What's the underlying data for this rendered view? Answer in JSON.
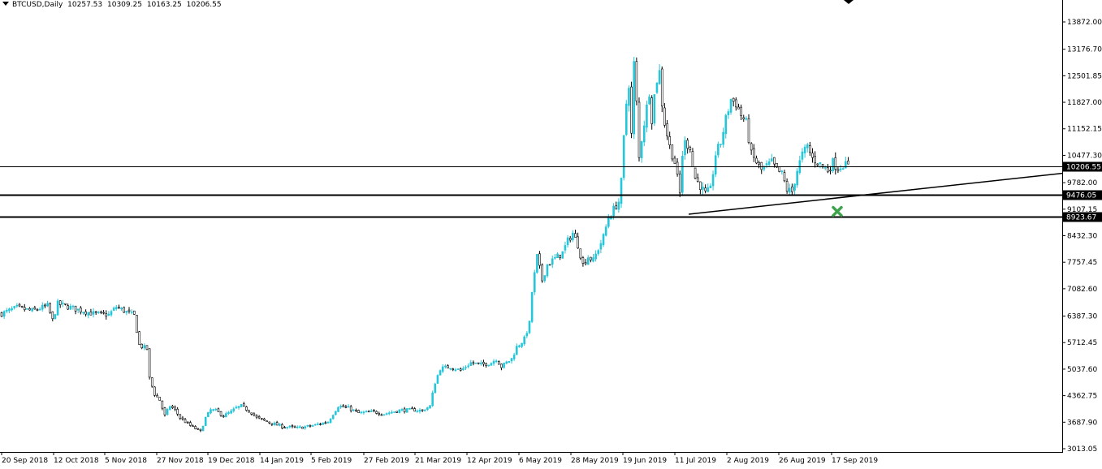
{
  "header": {
    "symbol": "BTCUSD,Daily",
    "open": "10257.53",
    "high": "10309.25",
    "low": "10163.25",
    "close": "10206.55"
  },
  "chart_data": {
    "type": "candlestick",
    "symbol": "BTCUSD",
    "timeframe": "Daily",
    "ylim": [
      3013.05,
      14100
    ],
    "y_ticks": [
      "13872.00",
      "13176.70",
      "12501.85",
      "11827.00",
      "11152.15",
      "10477.30",
      "9782.00",
      "9107.15",
      "8432.30",
      "7757.45",
      "7082.60",
      "6387.30",
      "5712.45",
      "5037.60",
      "4362.75",
      "3687.90",
      "3013.05"
    ],
    "x_ticks": [
      "20 Sep 2018",
      "12 Oct 2018",
      "5 Nov 2018",
      "27 Nov 2018",
      "19 Dec 2018",
      "14 Jan 2019",
      "5 Feb 2019",
      "27 Feb 2019",
      "21 Mar 2019",
      "12 Apr 2019",
      "6 May 2019",
      "28 May 2019",
      "19 Jun 2019",
      "11 Jul 2019",
      "2 Aug 2019",
      "26 Aug 2019",
      "17 Sep 2019"
    ],
    "price_levels": [
      {
        "label": "10206.55",
        "value": 10206.55,
        "style": "thin"
      },
      {
        "label": "9476.05",
        "value": 9476.05,
        "style": "thick"
      },
      {
        "label": "8923.67",
        "value": 8923.67,
        "style": "thick"
      }
    ],
    "trendline": {
      "from": {
        "date": "10 Jul 2019",
        "value": 8980
      },
      "to": {
        "date": "10 Oct 2019",
        "value": 10020
      }
    },
    "marker": {
      "type": "cross",
      "date": "19 Sep 2019",
      "value": 9050,
      "color": "#3fa34d"
    },
    "colors": {
      "bull": "#26c6da",
      "bear": "#000000"
    },
    "anchors": [
      {
        "i": 0,
        "p": 6450
      },
      {
        "i": 6,
        "p": 6600
      },
      {
        "i": 12,
        "p": 6520
      },
      {
        "i": 18,
        "p": 6650
      },
      {
        "i": 20,
        "p": 6280
      },
      {
        "i": 22,
        "p": 6700
      },
      {
        "i": 30,
        "p": 6550
      },
      {
        "i": 36,
        "p": 6450
      },
      {
        "i": 42,
        "p": 6420
      },
      {
        "i": 45,
        "p": 6620
      },
      {
        "i": 52,
        "p": 6400
      },
      {
        "i": 54,
        "p": 5650
      },
      {
        "i": 57,
        "p": 5550
      },
      {
        "i": 58,
        "p": 4800
      },
      {
        "i": 60,
        "p": 4400
      },
      {
        "i": 62,
        "p": 4250
      },
      {
        "i": 64,
        "p": 3850
      },
      {
        "i": 66,
        "p": 4100
      },
      {
        "i": 68,
        "p": 4000
      },
      {
        "i": 70,
        "p": 3800
      },
      {
        "i": 74,
        "p": 3600
      },
      {
        "i": 78,
        "p": 3450
      },
      {
        "i": 80,
        "p": 3800
      },
      {
        "i": 82,
        "p": 4000
      },
      {
        "i": 84,
        "p": 3980
      },
      {
        "i": 87,
        "p": 3850
      },
      {
        "i": 90,
        "p": 3950
      },
      {
        "i": 92,
        "p": 4050
      },
      {
        "i": 94,
        "p": 4100
      },
      {
        "i": 98,
        "p": 3930
      },
      {
        "i": 100,
        "p": 3800
      },
      {
        "i": 104,
        "p": 3700
      },
      {
        "i": 110,
        "p": 3580
      },
      {
        "i": 116,
        "p": 3540
      },
      {
        "i": 122,
        "p": 3600
      },
      {
        "i": 128,
        "p": 3700
      },
      {
        "i": 132,
        "p": 4100
      },
      {
        "i": 136,
        "p": 4050
      },
      {
        "i": 140,
        "p": 3920
      },
      {
        "i": 146,
        "p": 3950
      },
      {
        "i": 150,
        "p": 3900
      },
      {
        "i": 156,
        "p": 3990
      },
      {
        "i": 162,
        "p": 4000
      },
      {
        "i": 165,
        "p": 3980
      },
      {
        "i": 168,
        "p": 4100
      },
      {
        "i": 170,
        "p": 4700
      },
      {
        "i": 172,
        "p": 5050
      },
      {
        "i": 176,
        "p": 5100
      },
      {
        "i": 180,
        "p": 5000
      },
      {
        "i": 184,
        "p": 5200
      },
      {
        "i": 188,
        "p": 5150
      },
      {
        "i": 192,
        "p": 5200
      },
      {
        "i": 194,
        "p": 5300
      },
      {
        "i": 196,
        "p": 5100
      },
      {
        "i": 198,
        "p": 5200
      },
      {
        "i": 200,
        "p": 5300
      },
      {
        "i": 202,
        "p": 5600
      },
      {
        "i": 205,
        "p": 5800
      },
      {
        "i": 207,
        "p": 6200
      },
      {
        "i": 208,
        "p": 7000
      },
      {
        "i": 210,
        "p": 7900
      },
      {
        "i": 212,
        "p": 7300
      },
      {
        "i": 214,
        "p": 7700
      },
      {
        "i": 216,
        "p": 7800
      },
      {
        "i": 218,
        "p": 7900
      },
      {
        "i": 220,
        "p": 8000
      },
      {
        "i": 222,
        "p": 8300
      },
      {
        "i": 224,
        "p": 8500
      },
      {
        "i": 226,
        "p": 8200
      },
      {
        "i": 228,
        "p": 7700
      },
      {
        "i": 230,
        "p": 7900
      },
      {
        "i": 232,
        "p": 7800
      },
      {
        "i": 234,
        "p": 8100
      },
      {
        "i": 236,
        "p": 8400
      },
      {
        "i": 238,
        "p": 8900
      },
      {
        "i": 240,
        "p": 9100
      },
      {
        "i": 242,
        "p": 9300
      },
      {
        "i": 243,
        "p": 9800
      },
      {
        "i": 244,
        "p": 10900
      },
      {
        "i": 245,
        "p": 11800
      },
      {
        "i": 246,
        "p": 12300
      },
      {
        "i": 247,
        "p": 11000
      },
      {
        "i": 248,
        "p": 12800
      },
      {
        "i": 249,
        "p": 11800
      },
      {
        "i": 250,
        "p": 10400
      },
      {
        "i": 251,
        "p": 10900
      },
      {
        "i": 252,
        "p": 11300
      },
      {
        "i": 254,
        "p": 12100
      },
      {
        "i": 255,
        "p": 11400
      },
      {
        "i": 256,
        "p": 12000
      },
      {
        "i": 257,
        "p": 12400
      },
      {
        "i": 258,
        "p": 12600
      },
      {
        "i": 259,
        "p": 11800
      },
      {
        "i": 260,
        "p": 11300
      },
      {
        "i": 262,
        "p": 10700
      },
      {
        "i": 264,
        "p": 10300
      },
      {
        "i": 266,
        "p": 9500
      },
      {
        "i": 267,
        "p": 10500
      },
      {
        "i": 268,
        "p": 10800
      },
      {
        "i": 270,
        "p": 10700
      },
      {
        "i": 271,
        "p": 10200
      },
      {
        "i": 272,
        "p": 9900
      },
      {
        "i": 274,
        "p": 9700
      },
      {
        "i": 276,
        "p": 9500
      },
      {
        "i": 278,
        "p": 9600
      },
      {
        "i": 280,
        "p": 10500
      },
      {
        "i": 282,
        "p": 10800
      },
      {
        "i": 284,
        "p": 11400
      },
      {
        "i": 286,
        "p": 11900
      },
      {
        "i": 288,
        "p": 11800
      },
      {
        "i": 290,
        "p": 11500
      },
      {
        "i": 292,
        "p": 11300
      },
      {
        "i": 294,
        "p": 10500
      },
      {
        "i": 296,
        "p": 10300
      },
      {
        "i": 298,
        "p": 10100
      },
      {
        "i": 300,
        "p": 10200
      },
      {
        "i": 302,
        "p": 10300
      },
      {
        "i": 304,
        "p": 10100
      },
      {
        "i": 306,
        "p": 10000
      },
      {
        "i": 308,
        "p": 9600
      },
      {
        "i": 310,
        "p": 9550
      },
      {
        "i": 312,
        "p": 10100
      },
      {
        "i": 314,
        "p": 10500
      },
      {
        "i": 316,
        "p": 10700
      },
      {
        "i": 318,
        "p": 10400
      },
      {
        "i": 320,
        "p": 10300
      },
      {
        "i": 322,
        "p": 10200
      },
      {
        "i": 324,
        "p": 10100
      },
      {
        "i": 326,
        "p": 10300
      },
      {
        "i": 328,
        "p": 10150
      },
      {
        "i": 330,
        "p": 10250
      },
      {
        "i": 332,
        "p": 10200
      }
    ]
  }
}
